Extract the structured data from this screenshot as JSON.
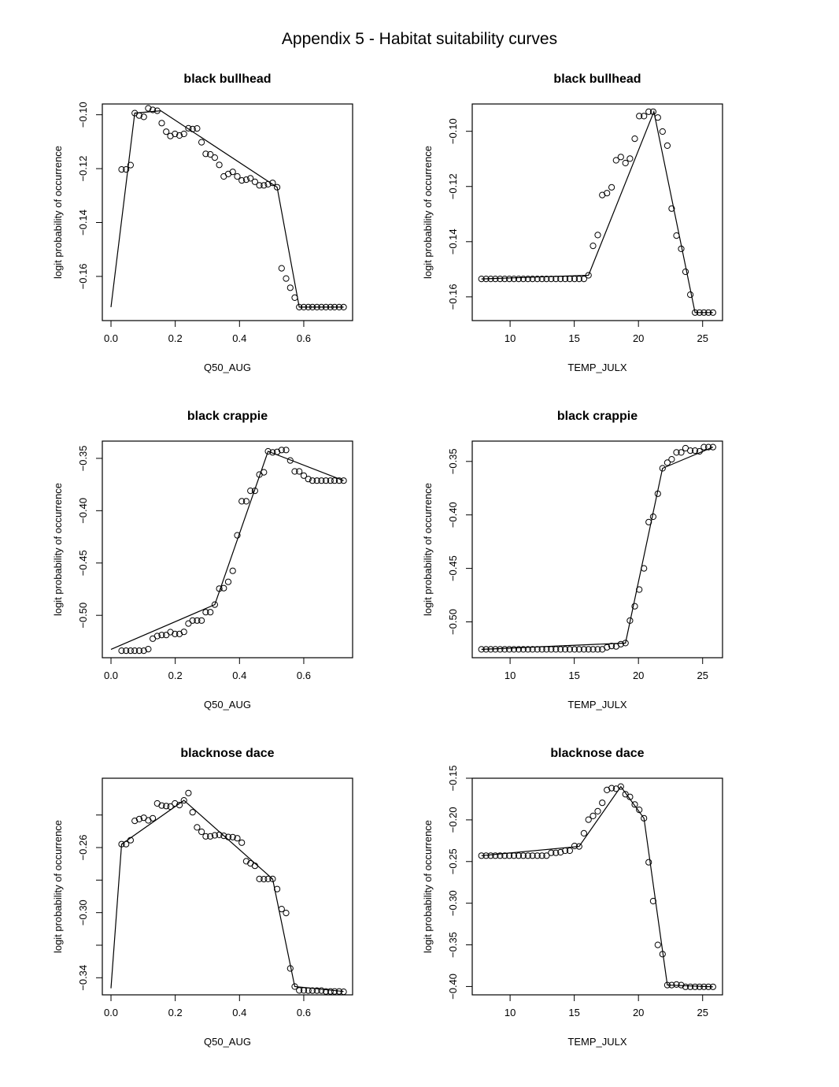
{
  "page_title": "Appendix 5 - Habitat suitability curves",
  "chart_data": [
    {
      "type": "scatter",
      "title": "black bullhead",
      "xlabel": "Q50_AUG",
      "ylabel": "logit probability of occurrence",
      "xlim": [
        -0.027,
        0.752
      ],
      "ylim": [
        -0.1764,
        -0.096
      ],
      "xticks": [
        0.0,
        0.2,
        0.4,
        0.6
      ],
      "xtick_labels": [
        "0.0",
        "0.2",
        "0.4",
        "0.6"
      ],
      "yticks": [
        -0.16,
        -0.14,
        -0.12,
        -0.1
      ],
      "ytick_labels": [
        "-0.16",
        "-0.14",
        "-0.12",
        "-0.10"
      ],
      "grid": false,
      "points": {
        "x": [
          0.033,
          0.047,
          0.061,
          0.074,
          0.088,
          0.102,
          0.116,
          0.13,
          0.144,
          0.158,
          0.172,
          0.185,
          0.199,
          0.213,
          0.227,
          0.241,
          0.254,
          0.268,
          0.282,
          0.295,
          0.309,
          0.323,
          0.337,
          0.351,
          0.365,
          0.379,
          0.393,
          0.407,
          0.421,
          0.434,
          0.448,
          0.462,
          0.476,
          0.489,
          0.503,
          0.517,
          0.531,
          0.545,
          0.558,
          0.572,
          0.586,
          0.6,
          0.614,
          0.627,
          0.641,
          0.655,
          0.669,
          0.683,
          0.696,
          0.71,
          0.724
        ],
        "y": [
          -0.1203,
          -0.1203,
          -0.1187,
          -0.0994,
          -0.1003,
          -0.1008,
          -0.0976,
          -0.0982,
          -0.0985,
          -0.1031,
          -0.1063,
          -0.1079,
          -0.1071,
          -0.1077,
          -0.1071,
          -0.105,
          -0.1053,
          -0.1051,
          -0.1102,
          -0.1145,
          -0.1147,
          -0.1159,
          -0.1186,
          -0.1229,
          -0.122,
          -0.1212,
          -0.1229,
          -0.1244,
          -0.1241,
          -0.1236,
          -0.1249,
          -0.1262,
          -0.1262,
          -0.1258,
          -0.1253,
          -0.1269,
          -0.157,
          -0.1608,
          -0.1642,
          -0.1679,
          -0.1714,
          -0.1714,
          -0.1714,
          -0.1714,
          -0.1714,
          -0.1714,
          -0.1714,
          -0.1714,
          -0.1714,
          -0.1714,
          -0.1714
        ]
      },
      "line": {
        "x": [
          0.0,
          0.074,
          0.155,
          0.517,
          0.586,
          0.724
        ],
        "y": [
          -0.1714,
          -0.0994,
          -0.0985,
          -0.1269,
          -0.1714,
          -0.1714
        ]
      }
    },
    {
      "type": "scatter",
      "title": "black bullhead",
      "xlabel": "TEMP_JULX",
      "ylabel": "logit probability of occurrence",
      "xlim": [
        7.05,
        26.55
      ],
      "ylim": [
        -0.1686,
        -0.0901
      ],
      "xticks": [
        10,
        15,
        20,
        25
      ],
      "xtick_labels": [
        "10",
        "15",
        "20",
        "25"
      ],
      "yticks": [
        -0.16,
        -0.14,
        -0.12,
        -0.1
      ],
      "ytick_labels": [
        "-0.16",
        "-0.14",
        "-0.12",
        "-0.10"
      ],
      "grid": false,
      "points": {
        "x": [
          7.77,
          8.13,
          8.49,
          8.85,
          9.22,
          9.58,
          9.94,
          10.3,
          10.67,
          11.03,
          11.39,
          11.75,
          12.12,
          12.48,
          12.84,
          13.2,
          13.57,
          13.93,
          14.29,
          14.65,
          15.02,
          15.38,
          15.75,
          16.11,
          16.46,
          16.83,
          17.18,
          17.55,
          17.91,
          18.26,
          18.63,
          18.99,
          19.34,
          19.71,
          20.06,
          20.43,
          20.8,
          21.15,
          21.51,
          21.88,
          22.25,
          22.59,
          22.96,
          23.33,
          23.67,
          24.04,
          24.41,
          24.76,
          25.1,
          25.45,
          25.81
        ],
        "y": [
          -0.1535,
          -0.1535,
          -0.1535,
          -0.1535,
          -0.1535,
          -0.1535,
          -0.1535,
          -0.1535,
          -0.1535,
          -0.1535,
          -0.1535,
          -0.1535,
          -0.1535,
          -0.1535,
          -0.1535,
          -0.1535,
          -0.1535,
          -0.1535,
          -0.1535,
          -0.1535,
          -0.1535,
          -0.1535,
          -0.1535,
          -0.1522,
          -0.1415,
          -0.1376,
          -0.1231,
          -0.1224,
          -0.1203,
          -0.1105,
          -0.1093,
          -0.1115,
          -0.1099,
          -0.1027,
          -0.0945,
          -0.0945,
          -0.0929,
          -0.0929,
          -0.095,
          -0.1001,
          -0.1052,
          -0.128,
          -0.1378,
          -0.1426,
          -0.1509,
          -0.1592,
          -0.1657,
          -0.1657,
          -0.1657,
          -0.1657,
          -0.1657
        ]
      },
      "line": {
        "x": [
          7.77,
          16.11,
          21.2,
          24.41,
          25.81
        ],
        "y": [
          -0.1535,
          -0.1522,
          -0.0929,
          -0.1657,
          -0.1657
        ]
      }
    },
    {
      "type": "scatter",
      "title": "black crappie",
      "xlabel": "Q50_AUG",
      "ylabel": "logit probability of occurrence",
      "xlim": [
        -0.027,
        0.752
      ],
      "ylim": [
        -0.5405,
        -0.3335
      ],
      "xticks": [
        0.0,
        0.2,
        0.4,
        0.6
      ],
      "xtick_labels": [
        "0.0",
        "0.2",
        "0.4",
        "0.6"
      ],
      "yticks": [
        -0.5,
        -0.45,
        -0.4,
        -0.35
      ],
      "ytick_labels": [
        "-0.50",
        "-0.45",
        "-0.40",
        "-0.35"
      ],
      "grid": false,
      "points": {
        "x": [
          0.033,
          0.047,
          0.061,
          0.074,
          0.088,
          0.102,
          0.116,
          0.13,
          0.144,
          0.158,
          0.172,
          0.185,
          0.199,
          0.213,
          0.227,
          0.241,
          0.254,
          0.268,
          0.282,
          0.295,
          0.309,
          0.323,
          0.337,
          0.351,
          0.365,
          0.379,
          0.393,
          0.407,
          0.421,
          0.434,
          0.448,
          0.462,
          0.476,
          0.489,
          0.503,
          0.517,
          0.531,
          0.545,
          0.558,
          0.572,
          0.586,
          0.6,
          0.614,
          0.627,
          0.641,
          0.655,
          0.669,
          0.683,
          0.696,
          0.71,
          0.724
        ],
        "y": [
          -0.5338,
          -0.5338,
          -0.5338,
          -0.5338,
          -0.5338,
          -0.5338,
          -0.5323,
          -0.5223,
          -0.5198,
          -0.5188,
          -0.5188,
          -0.516,
          -0.5178,
          -0.5178,
          -0.5158,
          -0.5078,
          -0.505,
          -0.505,
          -0.505,
          -0.497,
          -0.497,
          -0.4898,
          -0.4745,
          -0.474,
          -0.468,
          -0.4575,
          -0.4235,
          -0.391,
          -0.391,
          -0.381,
          -0.381,
          -0.3655,
          -0.3633,
          -0.3433,
          -0.3443,
          -0.3438,
          -0.342,
          -0.342,
          -0.352,
          -0.3625,
          -0.3625,
          -0.3665,
          -0.3698,
          -0.3713,
          -0.3713,
          -0.3713,
          -0.3713,
          -0.3713,
          -0.3713,
          -0.3713,
          -0.3713
        ]
      },
      "line": {
        "x": [
          0.0,
          0.323,
          0.489,
          0.724
        ],
        "y": [
          -0.5325,
          -0.4898,
          -0.3433,
          -0.3713
        ]
      }
    },
    {
      "type": "scatter",
      "title": "black crappie",
      "xlabel": "TEMP_JULX",
      "ylabel": "logit probability of occurrence",
      "xlim": [
        7.05,
        26.55
      ],
      "ylim": [
        -0.5335,
        -0.331
      ],
      "xticks": [
        10,
        15,
        20,
        25
      ],
      "xtick_labels": [
        "10",
        "15",
        "20",
        "25"
      ],
      "yticks": [
        -0.5,
        -0.45,
        -0.4,
        -0.35
      ],
      "ytick_labels": [
        "-0.50",
        "-0.45",
        "-0.40",
        "-0.35"
      ],
      "grid": false,
      "points": {
        "x": [
          7.77,
          8.13,
          8.49,
          8.85,
          9.22,
          9.58,
          9.94,
          10.3,
          10.67,
          11.03,
          11.39,
          11.75,
          12.12,
          12.48,
          12.84,
          13.2,
          13.57,
          13.93,
          14.29,
          14.65,
          15.02,
          15.38,
          15.75,
          16.11,
          16.46,
          16.83,
          17.18,
          17.55,
          17.91,
          18.26,
          18.63,
          18.99,
          19.34,
          19.71,
          20.06,
          20.43,
          20.8,
          21.15,
          21.51,
          21.88,
          22.25,
          22.59,
          22.96,
          23.33,
          23.67,
          24.04,
          24.41,
          24.76,
          25.1,
          25.45,
          25.81
        ],
        "y": [
          -0.5257,
          -0.5257,
          -0.5257,
          -0.5257,
          -0.5257,
          -0.5257,
          -0.5257,
          -0.5257,
          -0.5257,
          -0.5257,
          -0.5257,
          -0.5257,
          -0.5257,
          -0.5257,
          -0.5257,
          -0.5257,
          -0.5257,
          -0.5257,
          -0.5257,
          -0.5257,
          -0.5257,
          -0.5257,
          -0.5257,
          -0.5257,
          -0.5257,
          -0.5257,
          -0.5257,
          -0.5238,
          -0.5225,
          -0.523,
          -0.5208,
          -0.5198,
          -0.4988,
          -0.4854,
          -0.4698,
          -0.45,
          -0.4067,
          -0.4017,
          -0.3802,
          -0.3564,
          -0.3512,
          -0.348,
          -0.3416,
          -0.3416,
          -0.3376,
          -0.3399,
          -0.3399,
          -0.3406,
          -0.3366,
          -0.3366,
          -0.3366
        ]
      },
      "line": {
        "x": [
          7.77,
          18.99,
          21.88,
          25.81
        ],
        "y": [
          -0.5257,
          -0.5198,
          -0.3564,
          -0.3366
        ]
      }
    },
    {
      "type": "scatter",
      "title": "blacknose dace",
      "xlabel": "Q50_AUG",
      "ylabel": "logit probability of occurrence",
      "xlim": [
        -0.027,
        0.752
      ],
      "ylim": [
        -0.3505,
        -0.2174
      ],
      "xticks": [
        0.0,
        0.2,
        0.4,
        0.6
      ],
      "xtick_labels": [
        "0.0",
        "0.2",
        "0.4",
        "0.6"
      ],
      "yticks": [
        -0.34,
        -0.32,
        -0.3,
        -0.28,
        -0.26,
        -0.24
      ],
      "ytick_labels": [
        "-0.34",
        "",
        "-0.30",
        "",
        "-0.26",
        ""
      ],
      "grid": false,
      "points": {
        "x": [
          0.033,
          0.047,
          0.061,
          0.074,
          0.088,
          0.102,
          0.116,
          0.13,
          0.144,
          0.158,
          0.172,
          0.185,
          0.199,
          0.213,
          0.227,
          0.241,
          0.254,
          0.268,
          0.282,
          0.295,
          0.309,
          0.323,
          0.337,
          0.351,
          0.365,
          0.379,
          0.393,
          0.407,
          0.421,
          0.434,
          0.448,
          0.462,
          0.476,
          0.489,
          0.503,
          0.517,
          0.531,
          0.545,
          0.558,
          0.572,
          0.586,
          0.6,
          0.614,
          0.627,
          0.641,
          0.655,
          0.669,
          0.683,
          0.696,
          0.71,
          0.724
        ],
        "y": [
          -0.2579,
          -0.2579,
          -0.2555,
          -0.2436,
          -0.2425,
          -0.2417,
          -0.2433,
          -0.242,
          -0.2329,
          -0.2342,
          -0.2345,
          -0.2348,
          -0.2329,
          -0.2339,
          -0.231,
          -0.2265,
          -0.2383,
          -0.2476,
          -0.2503,
          -0.2531,
          -0.2531,
          -0.2525,
          -0.2522,
          -0.2528,
          -0.2535,
          -0.2536,
          -0.2543,
          -0.257,
          -0.2684,
          -0.2697,
          -0.2712,
          -0.2793,
          -0.2794,
          -0.2793,
          -0.2793,
          -0.2855,
          -0.2978,
          -0.3002,
          -0.3343,
          -0.3454,
          -0.3478,
          -0.3478,
          -0.3479,
          -0.3479,
          -0.3479,
          -0.3479,
          -0.3484,
          -0.3484,
          -0.3484,
          -0.3484,
          -0.3486
        ]
      },
      "line": {
        "x": [
          0.0,
          0.033,
          0.227,
          0.503,
          0.572,
          0.724
        ],
        "y": [
          -0.3465,
          -0.2579,
          -0.231,
          -0.2793,
          -0.3454,
          -0.3484
        ]
      }
    },
    {
      "type": "scatter",
      "title": "blacknose dace",
      "xlabel": "TEMP_JULX",
      "ylabel": "logit probability of occurrence",
      "xlim": [
        7.05,
        26.55
      ],
      "ylim": [
        -0.41,
        -0.15
      ],
      "xticks": [
        10,
        15,
        20,
        25
      ],
      "xtick_labels": [
        "10",
        "15",
        "20",
        "25"
      ],
      "yticks": [
        -0.4,
        -0.35,
        -0.3,
        -0.25,
        -0.2,
        -0.15
      ],
      "ytick_labels": [
        "-0.40",
        "-0.35",
        "-0.30",
        "-0.25",
        "-0.20",
        "-0.15"
      ],
      "grid": false,
      "points": {
        "x": [
          7.77,
          8.13,
          8.49,
          8.85,
          9.22,
          9.58,
          9.94,
          10.3,
          10.67,
          11.03,
          11.39,
          11.75,
          12.12,
          12.48,
          12.84,
          13.2,
          13.57,
          13.93,
          14.29,
          14.65,
          15.02,
          15.38,
          15.75,
          16.11,
          16.46,
          16.83,
          17.18,
          17.55,
          17.91,
          18.26,
          18.63,
          18.99,
          19.34,
          19.71,
          20.06,
          20.43,
          20.8,
          21.15,
          21.51,
          21.88,
          22.25,
          22.59,
          22.96,
          23.33,
          23.67,
          24.04,
          24.41,
          24.76,
          25.1,
          25.45,
          25.81
        ],
        "y": [
          -0.2429,
          -0.2429,
          -0.2429,
          -0.2429,
          -0.2429,
          -0.2429,
          -0.2429,
          -0.2429,
          -0.2429,
          -0.2429,
          -0.2429,
          -0.2429,
          -0.2429,
          -0.2429,
          -0.2429,
          -0.2395,
          -0.2395,
          -0.2389,
          -0.237,
          -0.237,
          -0.2313,
          -0.2319,
          -0.2161,
          -0.1997,
          -0.1953,
          -0.1896,
          -0.1795,
          -0.1641,
          -0.1619,
          -0.1626,
          -0.16,
          -0.1692,
          -0.1724,
          -0.1815,
          -0.1879,
          -0.198,
          -0.2509,
          -0.2975,
          -0.3501,
          -0.3611,
          -0.3983,
          -0.3983,
          -0.3976,
          -0.3983,
          -0.4004,
          -0.4004,
          -0.4004,
          -0.4004,
          -0.4004,
          -0.4004,
          -0.4004
        ]
      },
      "line": {
        "x": [
          7.77,
          15.38,
          18.63,
          20.43,
          22.25,
          25.81
        ],
        "y": [
          -0.2429,
          -0.2319,
          -0.16,
          -0.198,
          -0.3983,
          -0.4004
        ]
      }
    }
  ]
}
